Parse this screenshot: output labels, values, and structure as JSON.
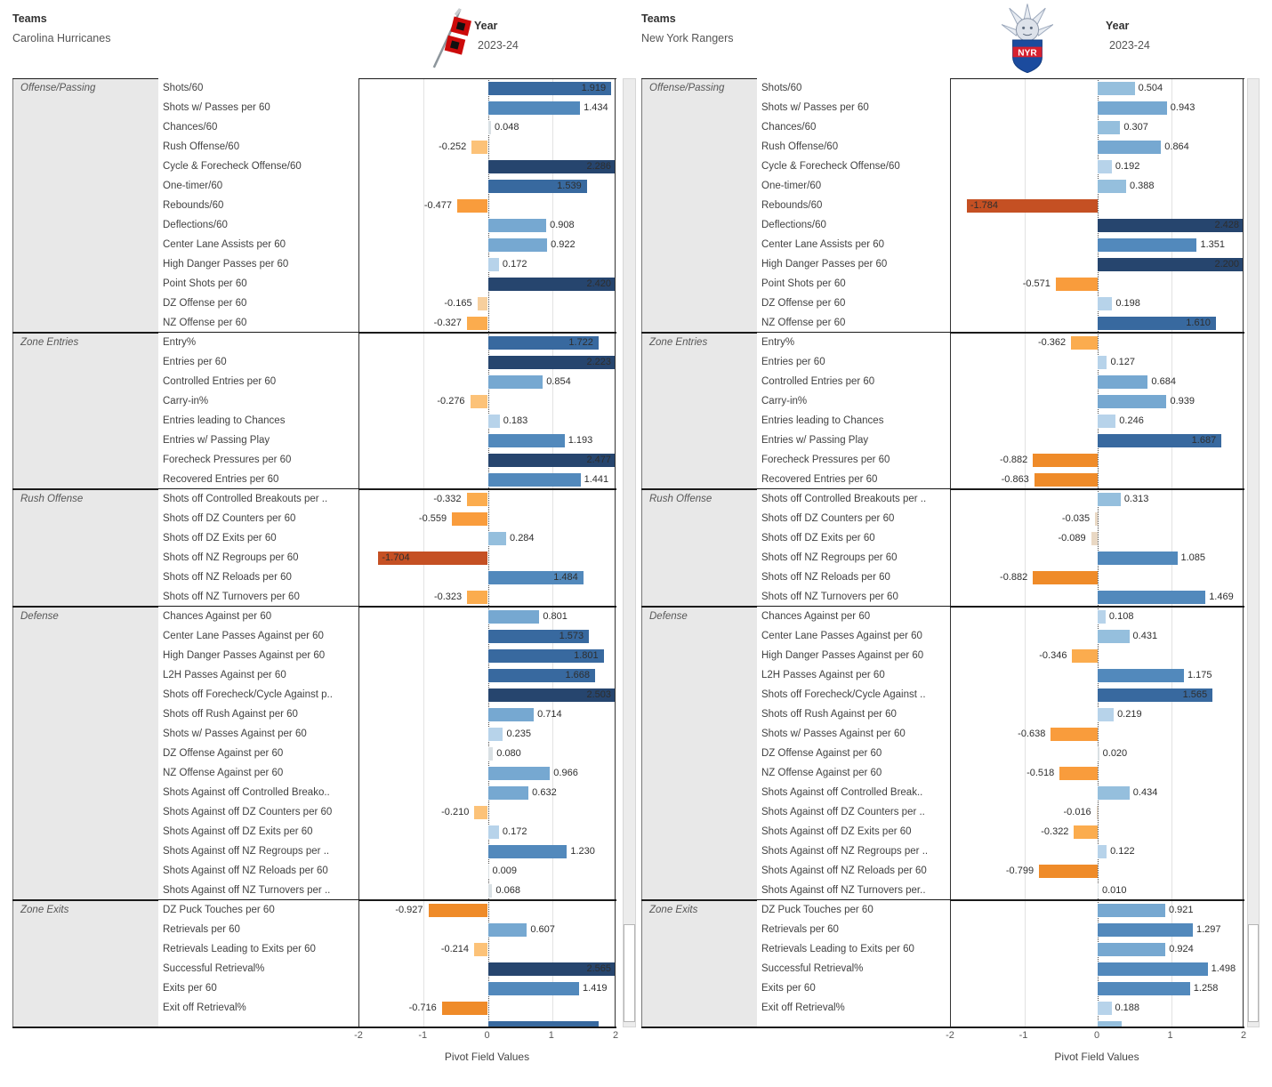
{
  "panels": [
    {
      "header": {
        "teams_label": "Teams",
        "team": "Carolina Hurricanes",
        "year_label": "Year",
        "year": "2023-24",
        "logo": "hurricanes-flag"
      }
    },
    {
      "header": {
        "teams_label": "Teams",
        "team": "New York Rangers",
        "year_label": "Year",
        "year": "2023-24",
        "logo": "rangers-liberty-shield"
      }
    }
  ],
  "axis": {
    "ticks": [
      "-2",
      "-1",
      "0",
      "1",
      "2"
    ],
    "title": "Pivot Field Values"
  },
  "colors": {
    "pos_bands": [
      [
        2.2,
        "#26456e"
      ],
      [
        1.5,
        "#38699f"
      ],
      [
        1.0,
        "#5289bc"
      ],
      [
        0.55,
        "#76a8d1"
      ],
      [
        0.25,
        "#95bfdd"
      ],
      [
        0.095,
        "#b7d3ea"
      ],
      [
        0,
        "#d9e0e4"
      ]
    ],
    "neg_bands": [
      [
        -0.1,
        "#e9d8c4"
      ],
      [
        -0.2,
        "#f7cf9d"
      ],
      [
        -0.31,
        "#fcc278"
      ],
      [
        -0.45,
        "#fbac4e"
      ],
      [
        -0.66,
        "#f99c3c"
      ],
      [
        -1.0,
        "#ef8b29"
      ],
      [
        -1.5,
        "#de661e"
      ],
      [
        -99,
        "#c55023"
      ]
    ],
    "category_bg": "#e8e8e8",
    "hurricanes_red": "#cc0a0a",
    "rangers_blue": "#1b4b9e",
    "rangers_red": "#d6202f"
  },
  "chart_data": {
    "type": "bar",
    "orientation": "horizontal",
    "xlim": [
      -2,
      2
    ],
    "xlabel": "Pivot Field Values",
    "panels": [
      {
        "team": "Carolina Hurricanes",
        "sections": [
          {
            "name": "Offense/Passing",
            "rows": [
              {
                "label": "Shots/60",
                "value": "1.919"
              },
              {
                "label": "Shots w/ Passes per 60",
                "value": "1.434"
              },
              {
                "label": "Chances/60",
                "value": "0.048"
              },
              {
                "label": "Rush Offense/60",
                "value": "-0.252"
              },
              {
                "label": "Cycle & Forecheck Offense/60",
                "value": "2.286"
              },
              {
                "label": "One-timer/60",
                "value": "1.539"
              },
              {
                "label": "Rebounds/60",
                "value": "-0.477"
              },
              {
                "label": "Deflections/60",
                "value": "0.908"
              },
              {
                "label": "Center Lane Assists per 60",
                "value": "0.922"
              },
              {
                "label": "High Danger Passes per 60",
                "value": "0.172"
              },
              {
                "label": "Point Shots per 60",
                "value": "2.420"
              },
              {
                "label": "DZ Offense per 60",
                "value": "-0.165"
              },
              {
                "label": "NZ Offense per 60",
                "value": "-0.327"
              }
            ]
          },
          {
            "name": "Zone Entries",
            "rows": [
              {
                "label": "Entry%",
                "value": "1.722"
              },
              {
                "label": "Entries per 60",
                "value": "2.223"
              },
              {
                "label": "Controlled Entries per 60",
                "value": "0.854"
              },
              {
                "label": "Carry-in%",
                "value": "-0.276"
              },
              {
                "label": "Entries leading to Chances",
                "value": "0.183"
              },
              {
                "label": "Entries w/ Passing Play",
                "value": "1.193"
              },
              {
                "label": "Forecheck Pressures per 60",
                "value": "2.477"
              },
              {
                "label": "Recovered Entries per 60",
                "value": "1.441"
              }
            ]
          },
          {
            "name": "Rush Offense",
            "rows": [
              {
                "label": "Shots off Controlled Breakouts per ..",
                "value": "-0.332"
              },
              {
                "label": "Shots off DZ Counters per 60",
                "value": "-0.559"
              },
              {
                "label": "Shots off DZ Exits per 60",
                "value": "0.284"
              },
              {
                "label": "Shots off NZ Regroups per 60",
                "value": "-1.704"
              },
              {
                "label": "Shots off NZ Reloads per 60",
                "value": "1.484"
              },
              {
                "label": "Shots off NZ Turnovers per 60",
                "value": "-0.323"
              }
            ]
          },
          {
            "name": "Defense",
            "rows": [
              {
                "label": "Chances Against per 60",
                "value": "0.801"
              },
              {
                "label": "Center Lane Passes Against per 60",
                "value": "1.573"
              },
              {
                "label": "High Danger Passes Against per 60",
                "value": "1.801"
              },
              {
                "label": "L2H Passes Against per 60",
                "value": "1.668"
              },
              {
                "label": "Shots off Forecheck/Cycle Against p..",
                "value": "2.503"
              },
              {
                "label": "Shots off Rush Against per 60",
                "value": "0.714"
              },
              {
                "label": "Shots w/ Passes Against per 60",
                "value": "0.235"
              },
              {
                "label": "DZ Offense Against per 60",
                "value": "0.080"
              },
              {
                "label": "NZ Offense Against per 60",
                "value": "0.966"
              },
              {
                "label": "Shots Against off Controlled Breako..",
                "value": "0.632"
              },
              {
                "label": "Shots Against off DZ Counters per 60",
                "value": "-0.210"
              },
              {
                "label": "Shots Against off DZ Exits per 60",
                "value": "0.172"
              },
              {
                "label": "Shots Against off NZ Regroups per ..",
                "value": "1.230"
              },
              {
                "label": "Shots Against off NZ Reloads per 60",
                "value": "0.009"
              },
              {
                "label": "Shots Against off NZ Turnovers per ..",
                "value": "0.068"
              }
            ]
          },
          {
            "name": "Zone Exits",
            "rows": [
              {
                "label": "DZ Puck Touches per 60",
                "value": "-0.927"
              },
              {
                "label": "Retrievals per 60",
                "value": "0.607"
              },
              {
                "label": "Retrievals Leading to Exits per 60",
                "value": "-0.214"
              },
              {
                "label": "Successful Retrieval%",
                "value": "2.565"
              },
              {
                "label": "Exits per 60",
                "value": "1.419"
              },
              {
                "label": "Exit off Retrieval%",
                "value": "-0.716"
              }
            ],
            "clipped_partial_bar_value": "1.72"
          }
        ]
      },
      {
        "team": "New York Rangers",
        "sections": [
          {
            "name": "Offense/Passing",
            "rows": [
              {
                "label": "Shots/60",
                "value": "0.504"
              },
              {
                "label": "Shots w/ Passes per 60",
                "value": "0.943"
              },
              {
                "label": "Chances/60",
                "value": "0.307"
              },
              {
                "label": "Rush Offense/60",
                "value": "0.864"
              },
              {
                "label": "Cycle & Forecheck Offense/60",
                "value": "0.192"
              },
              {
                "label": "One-timer/60",
                "value": "0.388"
              },
              {
                "label": "Rebounds/60",
                "value": "-1.784"
              },
              {
                "label": "Deflections/60",
                "value": "2.428"
              },
              {
                "label": "Center Lane Assists per 60",
                "value": "1.351"
              },
              {
                "label": "High Danger Passes per 60",
                "value": "2.200"
              },
              {
                "label": "Point Shots per 60",
                "value": "-0.571"
              },
              {
                "label": "DZ Offense per 60",
                "value": "0.198"
              },
              {
                "label": "NZ Offense per 60",
                "value": "1.610"
              }
            ]
          },
          {
            "name": "Zone Entries",
            "rows": [
              {
                "label": "Entry%",
                "value": "-0.362"
              },
              {
                "label": "Entries per 60",
                "value": "0.127"
              },
              {
                "label": "Controlled Entries per 60",
                "value": "0.684"
              },
              {
                "label": "Carry-in%",
                "value": "0.939"
              },
              {
                "label": "Entries leading to Chances",
                "value": "0.246"
              },
              {
                "label": "Entries w/ Passing Play",
                "value": "1.687"
              },
              {
                "label": "Forecheck Pressures per 60",
                "value": "-0.882"
              },
              {
                "label": "Recovered Entries per 60",
                "value": "-0.863"
              }
            ]
          },
          {
            "name": "Rush Offense",
            "rows": [
              {
                "label": "Shots off Controlled Breakouts per ..",
                "value": "0.313"
              },
              {
                "label": "Shots off DZ Counters per 60",
                "value": "-0.035"
              },
              {
                "label": "Shots off DZ Exits per 60",
                "value": "-0.089"
              },
              {
                "label": "Shots off NZ Regroups per 60",
                "value": "1.085"
              },
              {
                "label": "Shots off NZ Reloads per 60",
                "value": "-0.882"
              },
              {
                "label": "Shots off NZ Turnovers per 60",
                "value": "1.469"
              }
            ]
          },
          {
            "name": "Defense",
            "rows": [
              {
                "label": "Chances Against per 60",
                "value": "0.108"
              },
              {
                "label": "Center Lane Passes Against per 60",
                "value": "0.431"
              },
              {
                "label": "High Danger Passes Against per 60",
                "value": "-0.346"
              },
              {
                "label": "L2H Passes Against per 60",
                "value": "1.175"
              },
              {
                "label": "Shots off Forecheck/Cycle Against ..",
                "value": "1.565"
              },
              {
                "label": "Shots off Rush Against per 60",
                "value": "0.219"
              },
              {
                "label": "Shots w/ Passes Against per 60",
                "value": "-0.638"
              },
              {
                "label": "DZ Offense Against per 60",
                "value": "0.020"
              },
              {
                "label": "NZ Offense Against per 60",
                "value": "-0.518"
              },
              {
                "label": "Shots Against off Controlled Break..",
                "value": "0.434"
              },
              {
                "label": "Shots Against off DZ Counters per ..",
                "value": "-0.016"
              },
              {
                "label": "Shots Against off DZ Exits per 60",
                "value": "-0.322"
              },
              {
                "label": "Shots Against off NZ Regroups per ..",
                "value": "0.122"
              },
              {
                "label": "Shots Against off NZ Reloads per 60",
                "value": "-0.799"
              },
              {
                "label": "Shots Against off NZ Turnovers per..",
                "value": "0.010"
              }
            ]
          },
          {
            "name": "Zone Exits",
            "rows": [
              {
                "label": "DZ Puck Touches per 60",
                "value": "0.921"
              },
              {
                "label": "Retrievals per 60",
                "value": "1.297"
              },
              {
                "label": "Retrievals Leading to Exits per 60",
                "value": "0.924"
              },
              {
                "label": "Successful Retrieval%",
                "value": "1.498"
              },
              {
                "label": "Exits per 60",
                "value": "1.258"
              },
              {
                "label": "Exit off Retrieval%",
                "value": "0.188"
              }
            ],
            "clipped_partial_bar_value": "0.33"
          }
        ]
      }
    ]
  }
}
